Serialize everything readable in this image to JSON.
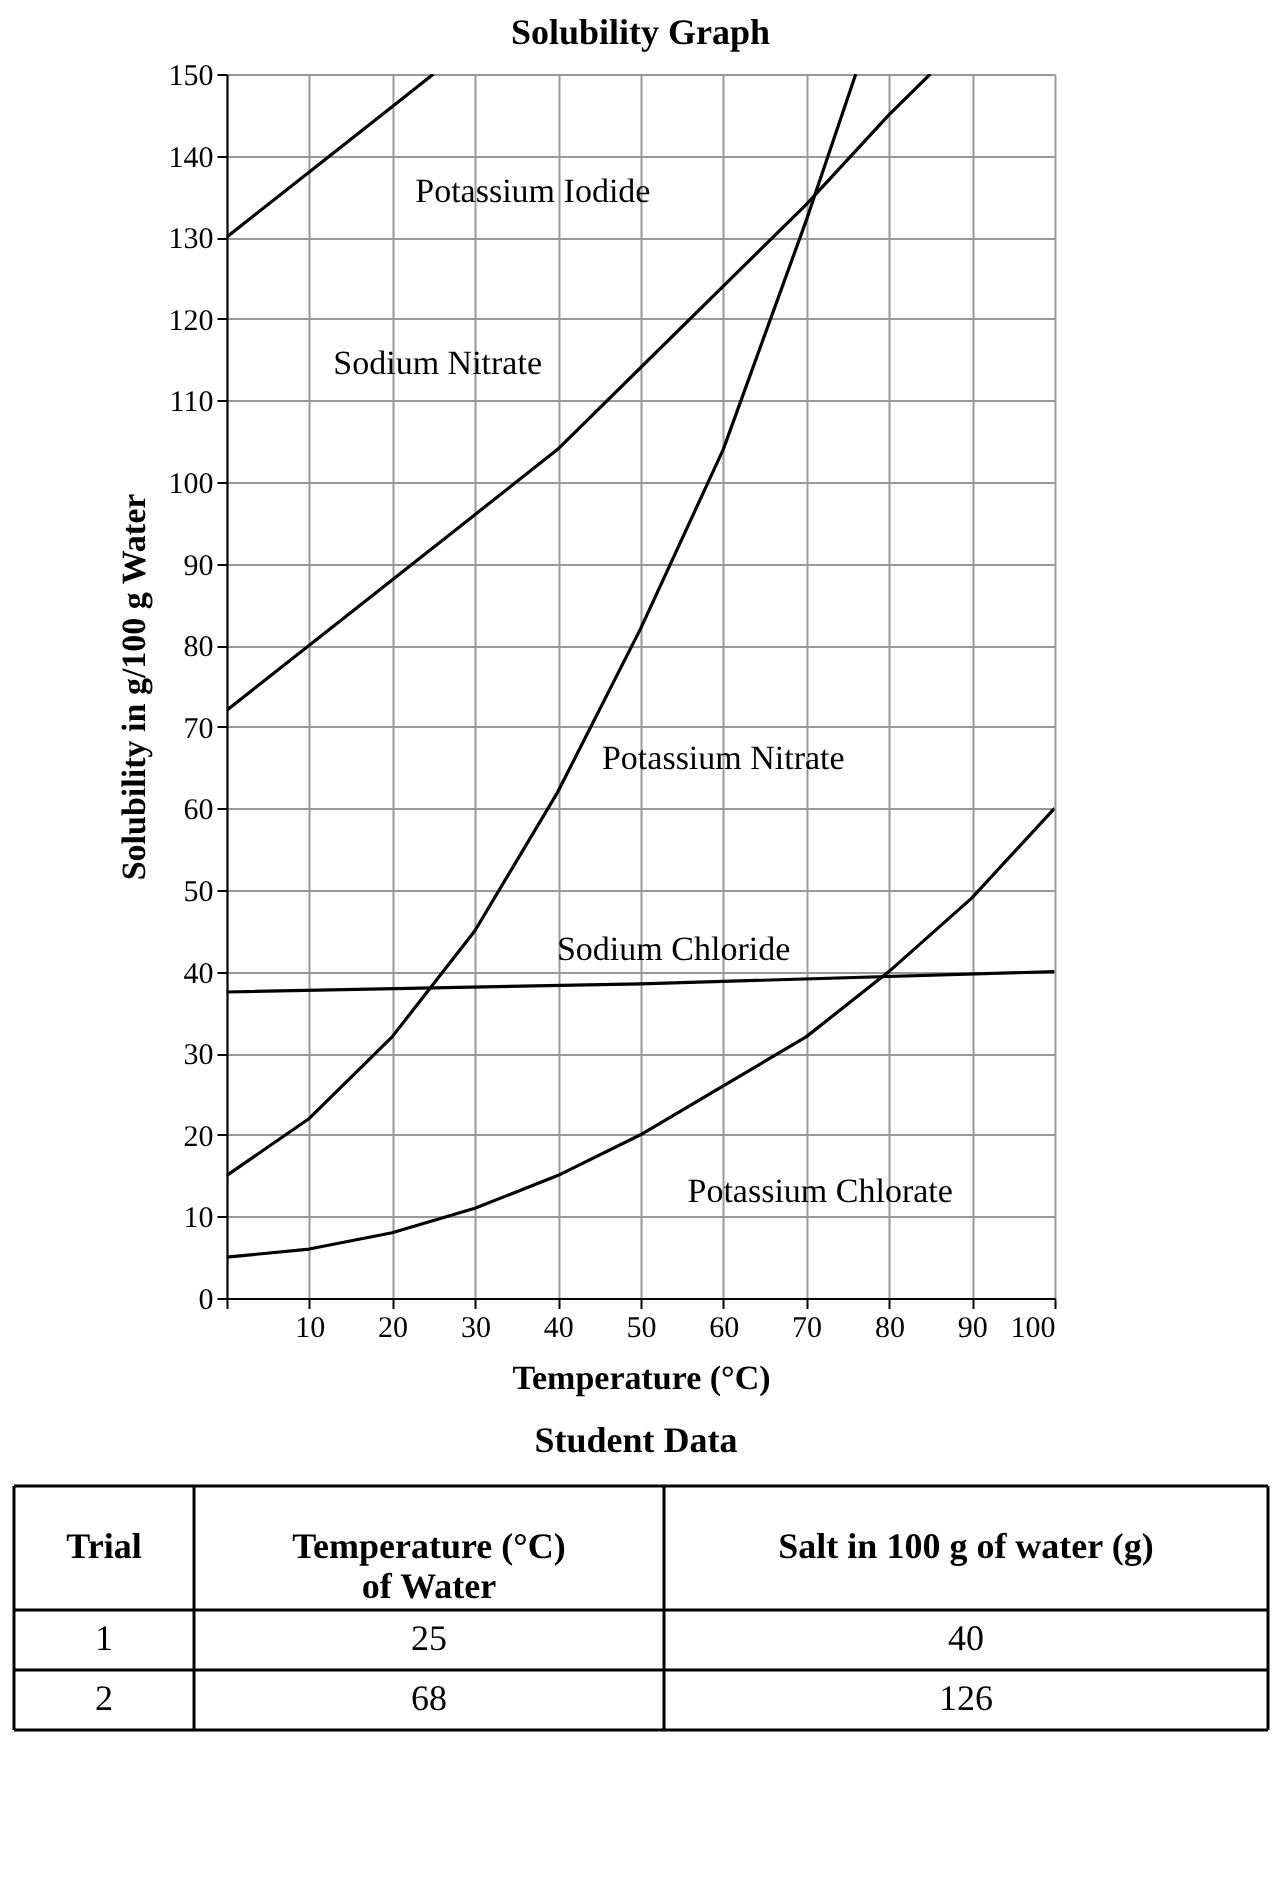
{
  "chart_data": {
    "type": "line",
    "title": "Solubility Graph",
    "xlabel": "Temperature (°C)",
    "ylabel": "Solubility in g/100 g Water",
    "x": [
      0,
      10,
      20,
      30,
      40,
      50,
      60,
      70,
      80,
      90,
      100
    ],
    "series": [
      {
        "name": "Potassium Iodide",
        "color": "#000000",
        "x": [
          0,
          10,
          20,
          25
        ],
        "values": [
          130,
          138,
          146,
          150
        ]
      },
      {
        "name": "Sodium Nitrate",
        "color": "#000000",
        "x": [
          0,
          10,
          20,
          30,
          40,
          50,
          60,
          70,
          80,
          85
        ],
        "values": [
          72,
          80,
          88,
          96,
          104,
          114,
          124,
          134,
          145,
          150
        ]
      },
      {
        "name": "Potassium Nitrate",
        "color": "#000000",
        "x": [
          0,
          10,
          20,
          30,
          40,
          50,
          60,
          70,
          76
        ],
        "values": [
          15,
          22,
          32,
          45,
          62,
          82,
          104,
          132,
          150
        ]
      },
      {
        "name": "Sodium Chloride",
        "color": "#000000",
        "x": [
          0,
          50,
          100
        ],
        "values": [
          37.5,
          38.5,
          40
        ]
      },
      {
        "name": "Potassium Chlorate",
        "color": "#000000",
        "values": [
          5,
          6,
          8,
          11,
          15,
          20,
          26,
          32,
          40,
          49,
          60
        ]
      }
    ],
    "xlim": [
      0,
      100
    ],
    "ylim": [
      0,
      150
    ],
    "xticks": [
      {
        "value": 0,
        "label": null
      },
      10,
      20,
      30,
      40,
      50,
      60,
      70,
      80,
      90,
      100
    ],
    "yticks": [
      0,
      10,
      20,
      30,
      40,
      50,
      60,
      70,
      80,
      90,
      100,
      110,
      120,
      130,
      140,
      150
    ],
    "grid": true,
    "line_style": "solid",
    "marker": "none",
    "annotations": [
      "Student Data",
      "Trial",
      "Temperature (°C)\nof Water",
      "Salt in 100 g of water (g)",
      "1",
      "25",
      "40",
      "2",
      "68",
      "126"
    ]
  }
}
